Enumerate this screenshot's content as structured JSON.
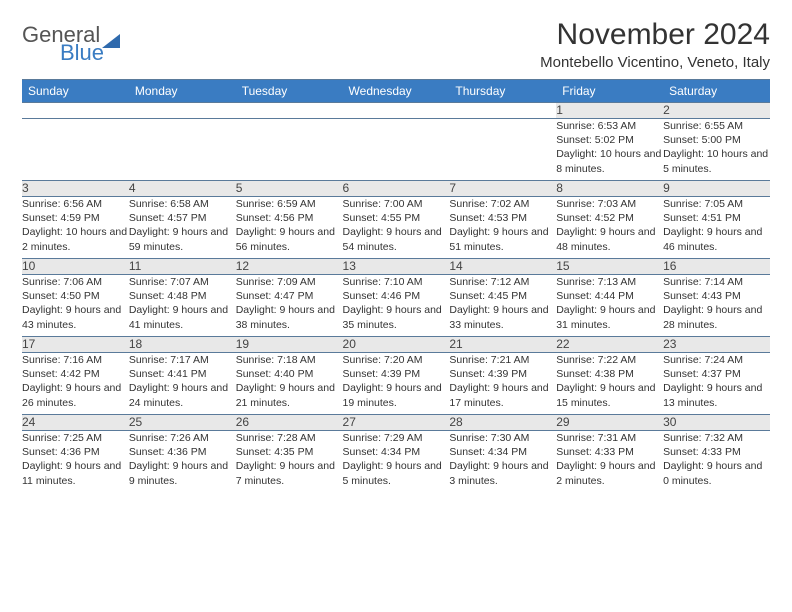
{
  "brand": {
    "part1": "General",
    "part2": "Blue"
  },
  "title": "November 2024",
  "location": "Montebello Vicentino, Veneto, Italy",
  "colors": {
    "header_bg": "#3a7cc2",
    "header_text": "#ffffff",
    "daynum_bg": "#e8e8e8",
    "border": "#5a7a9a",
    "body_text": "#333333"
  },
  "weekdays": [
    "Sunday",
    "Monday",
    "Tuesday",
    "Wednesday",
    "Thursday",
    "Friday",
    "Saturday"
  ],
  "weeks": [
    [
      null,
      null,
      null,
      null,
      null,
      {
        "n": "1",
        "sr": "Sunrise: 6:53 AM",
        "ss": "Sunset: 5:02 PM",
        "dl": "Daylight: 10 hours and 8 minutes."
      },
      {
        "n": "2",
        "sr": "Sunrise: 6:55 AM",
        "ss": "Sunset: 5:00 PM",
        "dl": "Daylight: 10 hours and 5 minutes."
      }
    ],
    [
      {
        "n": "3",
        "sr": "Sunrise: 6:56 AM",
        "ss": "Sunset: 4:59 PM",
        "dl": "Daylight: 10 hours and 2 minutes."
      },
      {
        "n": "4",
        "sr": "Sunrise: 6:58 AM",
        "ss": "Sunset: 4:57 PM",
        "dl": "Daylight: 9 hours and 59 minutes."
      },
      {
        "n": "5",
        "sr": "Sunrise: 6:59 AM",
        "ss": "Sunset: 4:56 PM",
        "dl": "Daylight: 9 hours and 56 minutes."
      },
      {
        "n": "6",
        "sr": "Sunrise: 7:00 AM",
        "ss": "Sunset: 4:55 PM",
        "dl": "Daylight: 9 hours and 54 minutes."
      },
      {
        "n": "7",
        "sr": "Sunrise: 7:02 AM",
        "ss": "Sunset: 4:53 PM",
        "dl": "Daylight: 9 hours and 51 minutes."
      },
      {
        "n": "8",
        "sr": "Sunrise: 7:03 AM",
        "ss": "Sunset: 4:52 PM",
        "dl": "Daylight: 9 hours and 48 minutes."
      },
      {
        "n": "9",
        "sr": "Sunrise: 7:05 AM",
        "ss": "Sunset: 4:51 PM",
        "dl": "Daylight: 9 hours and 46 minutes."
      }
    ],
    [
      {
        "n": "10",
        "sr": "Sunrise: 7:06 AM",
        "ss": "Sunset: 4:50 PM",
        "dl": "Daylight: 9 hours and 43 minutes."
      },
      {
        "n": "11",
        "sr": "Sunrise: 7:07 AM",
        "ss": "Sunset: 4:48 PM",
        "dl": "Daylight: 9 hours and 41 minutes."
      },
      {
        "n": "12",
        "sr": "Sunrise: 7:09 AM",
        "ss": "Sunset: 4:47 PM",
        "dl": "Daylight: 9 hours and 38 minutes."
      },
      {
        "n": "13",
        "sr": "Sunrise: 7:10 AM",
        "ss": "Sunset: 4:46 PM",
        "dl": "Daylight: 9 hours and 35 minutes."
      },
      {
        "n": "14",
        "sr": "Sunrise: 7:12 AM",
        "ss": "Sunset: 4:45 PM",
        "dl": "Daylight: 9 hours and 33 minutes."
      },
      {
        "n": "15",
        "sr": "Sunrise: 7:13 AM",
        "ss": "Sunset: 4:44 PM",
        "dl": "Daylight: 9 hours and 31 minutes."
      },
      {
        "n": "16",
        "sr": "Sunrise: 7:14 AM",
        "ss": "Sunset: 4:43 PM",
        "dl": "Daylight: 9 hours and 28 minutes."
      }
    ],
    [
      {
        "n": "17",
        "sr": "Sunrise: 7:16 AM",
        "ss": "Sunset: 4:42 PM",
        "dl": "Daylight: 9 hours and 26 minutes."
      },
      {
        "n": "18",
        "sr": "Sunrise: 7:17 AM",
        "ss": "Sunset: 4:41 PM",
        "dl": "Daylight: 9 hours and 24 minutes."
      },
      {
        "n": "19",
        "sr": "Sunrise: 7:18 AM",
        "ss": "Sunset: 4:40 PM",
        "dl": "Daylight: 9 hours and 21 minutes."
      },
      {
        "n": "20",
        "sr": "Sunrise: 7:20 AM",
        "ss": "Sunset: 4:39 PM",
        "dl": "Daylight: 9 hours and 19 minutes."
      },
      {
        "n": "21",
        "sr": "Sunrise: 7:21 AM",
        "ss": "Sunset: 4:39 PM",
        "dl": "Daylight: 9 hours and 17 minutes."
      },
      {
        "n": "22",
        "sr": "Sunrise: 7:22 AM",
        "ss": "Sunset: 4:38 PM",
        "dl": "Daylight: 9 hours and 15 minutes."
      },
      {
        "n": "23",
        "sr": "Sunrise: 7:24 AM",
        "ss": "Sunset: 4:37 PM",
        "dl": "Daylight: 9 hours and 13 minutes."
      }
    ],
    [
      {
        "n": "24",
        "sr": "Sunrise: 7:25 AM",
        "ss": "Sunset: 4:36 PM",
        "dl": "Daylight: 9 hours and 11 minutes."
      },
      {
        "n": "25",
        "sr": "Sunrise: 7:26 AM",
        "ss": "Sunset: 4:36 PM",
        "dl": "Daylight: 9 hours and 9 minutes."
      },
      {
        "n": "26",
        "sr": "Sunrise: 7:28 AM",
        "ss": "Sunset: 4:35 PM",
        "dl": "Daylight: 9 hours and 7 minutes."
      },
      {
        "n": "27",
        "sr": "Sunrise: 7:29 AM",
        "ss": "Sunset: 4:34 PM",
        "dl": "Daylight: 9 hours and 5 minutes."
      },
      {
        "n": "28",
        "sr": "Sunrise: 7:30 AM",
        "ss": "Sunset: 4:34 PM",
        "dl": "Daylight: 9 hours and 3 minutes."
      },
      {
        "n": "29",
        "sr": "Sunrise: 7:31 AM",
        "ss": "Sunset: 4:33 PM",
        "dl": "Daylight: 9 hours and 2 minutes."
      },
      {
        "n": "30",
        "sr": "Sunrise: 7:32 AM",
        "ss": "Sunset: 4:33 PM",
        "dl": "Daylight: 9 hours and 0 minutes."
      }
    ]
  ]
}
